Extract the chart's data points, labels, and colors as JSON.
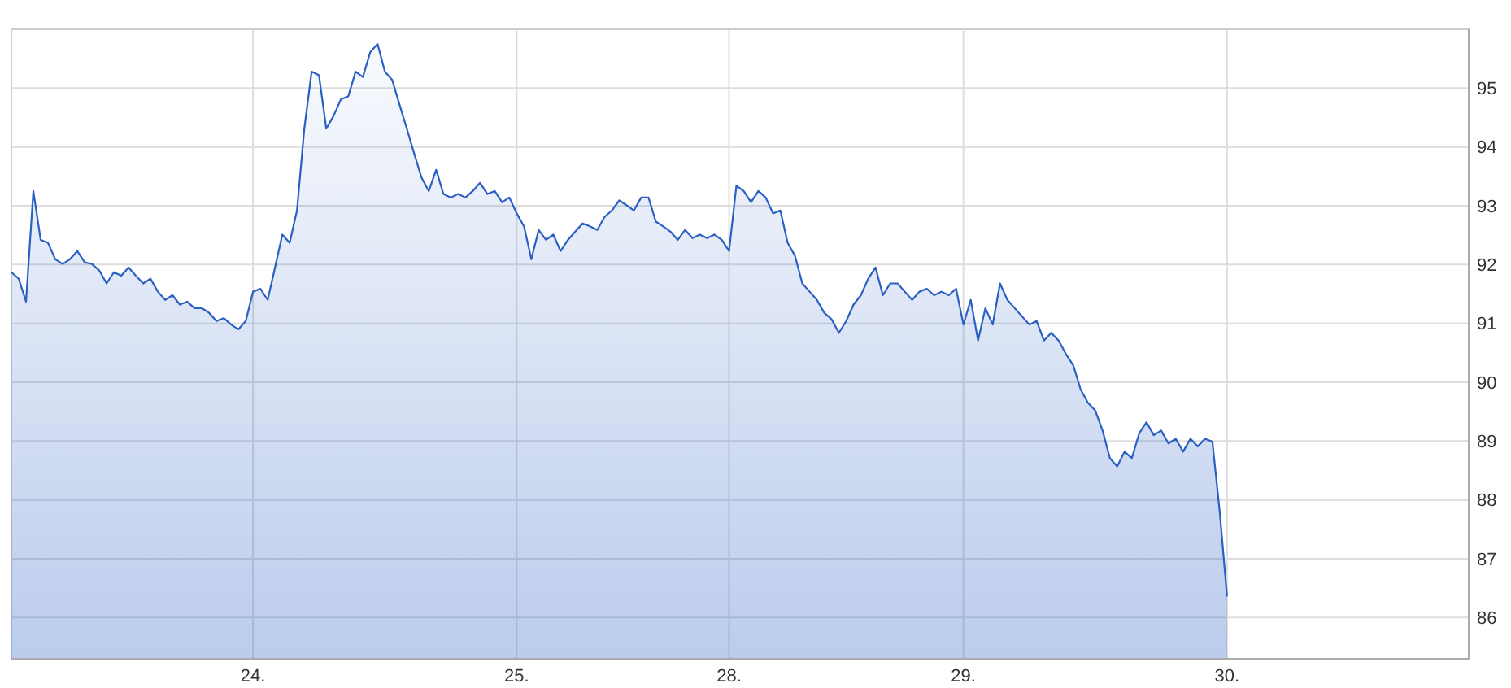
{
  "chart_data": {
    "type": "area",
    "grid": true,
    "ylim": [
      85.3,
      96.0
    ],
    "yticks": [
      86,
      87,
      88,
      89,
      90,
      91,
      92,
      93,
      94,
      95
    ],
    "categories": [
      null,
      null,
      null,
      null,
      null,
      null,
      null,
      null,
      null,
      null,
      null,
      null,
      null,
      null,
      null,
      null,
      null,
      null,
      null,
      null,
      null,
      null,
      null,
      null,
      null,
      null,
      null,
      null,
      null,
      null,
      null,
      null,
      null,
      "24.",
      null,
      null,
      null,
      null,
      null,
      null,
      null,
      null,
      null,
      null,
      null,
      null,
      null,
      null,
      null,
      null,
      null,
      null,
      null,
      null,
      null,
      null,
      null,
      null,
      null,
      null,
      null,
      null,
      null,
      null,
      null,
      null,
      null,
      null,
      null,
      "25.",
      null,
      null,
      null,
      null,
      null,
      null,
      null,
      null,
      null,
      null,
      null,
      null,
      null,
      null,
      null,
      null,
      null,
      null,
      null,
      null,
      null,
      null,
      null,
      null,
      null,
      null,
      null,
      null,
      "28.",
      null,
      null,
      null,
      null,
      null,
      null,
      null,
      null,
      null,
      null,
      null,
      null,
      null,
      null,
      null,
      null,
      null,
      null,
      null,
      null,
      null,
      null,
      null,
      null,
      null,
      null,
      null,
      null,
      null,
      null,
      null,
      "29.",
      null,
      null,
      null,
      null,
      null,
      null,
      null,
      null,
      null,
      null,
      null,
      null,
      null,
      null,
      null,
      null,
      null,
      null,
      null,
      null,
      null,
      null,
      null,
      null,
      null,
      null,
      null,
      null,
      null,
      null,
      null,
      null,
      null,
      null,
      null,
      "30.",
      null,
      null,
      null,
      null,
      null,
      null,
      null,
      null,
      null,
      null,
      null,
      null,
      null,
      null,
      null,
      null,
      null,
      null,
      null,
      null,
      null,
      null,
      null,
      null,
      null,
      null,
      null,
      null,
      null,
      null,
      null,
      null,
      null
    ],
    "series": [
      {
        "color": "#2a5fc4",
        "values": [
          91.87,
          91.76,
          91.37,
          93.25,
          92.42,
          92.37,
          92.09,
          92.01,
          92.09,
          92.23,
          92.04,
          92.01,
          91.9,
          91.68,
          91.87,
          91.81,
          91.95,
          91.81,
          91.68,
          91.76,
          91.54,
          91.4,
          91.48,
          91.32,
          91.37,
          91.26,
          91.26,
          91.18,
          91.04,
          91.09,
          90.98,
          90.9,
          91.04,
          91.54,
          91.59,
          91.4,
          91.95,
          92.51,
          92.37,
          92.92,
          94.31,
          95.28,
          95.22,
          94.31,
          94.53,
          94.81,
          94.86,
          95.28,
          95.19,
          95.61,
          95.75,
          95.28,
          95.14,
          94.72,
          94.31,
          93.89,
          93.48,
          93.25,
          93.61,
          93.2,
          93.14,
          93.2,
          93.14,
          93.25,
          93.39,
          93.2,
          93.25,
          93.06,
          93.14,
          92.87,
          92.65,
          92.09,
          92.59,
          92.42,
          92.51,
          92.23,
          92.42,
          92.56,
          92.7,
          92.65,
          92.59,
          92.81,
          92.92,
          93.09,
          93.01,
          92.92,
          93.14,
          93.14,
          92.73,
          92.65,
          92.56,
          92.42,
          92.59,
          92.45,
          92.51,
          92.45,
          92.51,
          92.42,
          92.23,
          93.34,
          93.25,
          93.06,
          93.25,
          93.14,
          92.87,
          92.92,
          92.37,
          92.15,
          91.68,
          91.54,
          91.4,
          91.18,
          91.07,
          90.84,
          91.04,
          91.32,
          91.48,
          91.76,
          91.95,
          91.48,
          91.68,
          91.68,
          91.54,
          91.4,
          91.54,
          91.59,
          91.48,
          91.54,
          91.48,
          91.59,
          90.98,
          91.4,
          90.71,
          91.26,
          90.98,
          91.68,
          91.4,
          91.26,
          91.12,
          90.98,
          91.04,
          90.71,
          90.84,
          90.71,
          90.48,
          90.29,
          89.88,
          89.65,
          89.52,
          89.18,
          88.71,
          88.57,
          88.82,
          88.71,
          89.13,
          89.32,
          89.1,
          89.18,
          88.96,
          89.04,
          88.82,
          89.04,
          88.91,
          89.04,
          88.99,
          87.8,
          86.36,
          null,
          null,
          null,
          null,
          null,
          null,
          null,
          null,
          null,
          null,
          null,
          null,
          null,
          null,
          null,
          null,
          null,
          null,
          null,
          null,
          null,
          null,
          null,
          null,
          null,
          null,
          null,
          null,
          null,
          null,
          null,
          null,
          null
        ]
      }
    ]
  }
}
